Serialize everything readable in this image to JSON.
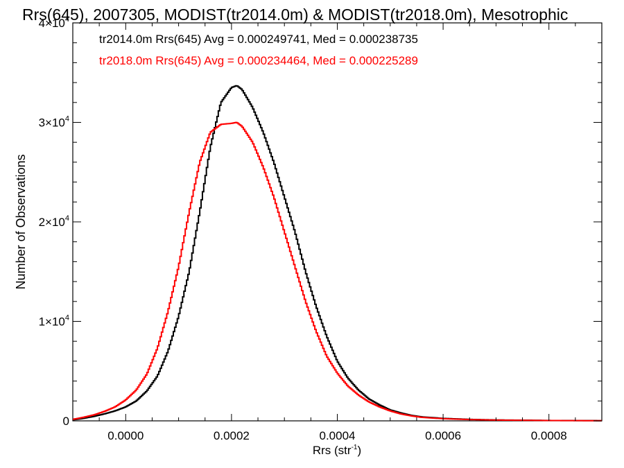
{
  "chart_data": {
    "type": "line",
    "title": "Rrs(645), 2007305, MODIST(tr2014.0m) & MODIST(tr2018.0m), Mesotrophic",
    "xlabel": "Rrs (str",
    "xlabel_sup": "-1",
    "xlabel_close": ")",
    "ylabel": "Number of Observations",
    "xlim": [
      -0.0001,
      0.0009
    ],
    "ylim": [
      0,
      40000
    ],
    "x_ticks": [
      {
        "value": 0.0,
        "label": "0.0000"
      },
      {
        "value": 0.0002,
        "label": "0.0002"
      },
      {
        "value": 0.0004,
        "label": "0.0004"
      },
      {
        "value": 0.0006,
        "label": "0.0006"
      },
      {
        "value": 0.0008,
        "label": "0.0008"
      }
    ],
    "y_ticks": [
      {
        "value": 0,
        "label": "0",
        "sup": ""
      },
      {
        "value": 10000,
        "label": "1×10",
        "sup": "4"
      },
      {
        "value": 20000,
        "label": "2×10",
        "sup": "4"
      },
      {
        "value": 30000,
        "label": "3×10",
        "sup": "4"
      },
      {
        "value": 40000,
        "label": "4×10",
        "sup": "4"
      }
    ],
    "annotations": [
      {
        "text": "tr2014.0m Rrs(645) Avg = 0.000249741, Med = 0.000238735",
        "color": "#000000"
      },
      {
        "text": "tr2018.0m Rrs(645) Avg = 0.000234464, Med = 0.000225289",
        "color": "#ff0000"
      }
    ],
    "series": [
      {
        "color": "#000000",
        "x": [
          -0.0001,
          -8e-05,
          -6e-05,
          -4e-05,
          -2e-05,
          0.0,
          2e-05,
          4e-05,
          6e-05,
          8e-05,
          0.0001,
          0.00012,
          0.00014,
          0.00016,
          0.00018,
          0.0002,
          0.00021,
          0.00022,
          0.00024,
          0.00026,
          0.00028,
          0.0003,
          0.00032,
          0.00034,
          0.00036,
          0.00038,
          0.0004,
          0.00042,
          0.00044,
          0.00046,
          0.00048,
          0.0005,
          0.00052,
          0.00054,
          0.00056,
          0.0006,
          0.00065,
          0.0007,
          0.0008,
          0.0009
        ],
        "y": [
          100,
          250,
          450,
          700,
          1000,
          1400,
          2000,
          3000,
          4500,
          7000,
          10500,
          15000,
          21000,
          27500,
          32000,
          33500,
          33700,
          33300,
          31500,
          29000,
          26000,
          22500,
          19000,
          15000,
          11500,
          8500,
          6000,
          4300,
          3100,
          2200,
          1600,
          1100,
          800,
          550,
          400,
          250,
          150,
          90,
          40,
          20
        ]
      },
      {
        "color": "#ff0000",
        "x": [
          -0.0001,
          -8e-05,
          -6e-05,
          -4e-05,
          -2e-05,
          0.0,
          2e-05,
          4e-05,
          6e-05,
          8e-05,
          0.0001,
          0.00012,
          0.00014,
          0.00016,
          0.00018,
          0.0002,
          0.00021,
          0.00022,
          0.00024,
          0.00026,
          0.00028,
          0.0003,
          0.00032,
          0.00034,
          0.00036,
          0.00038,
          0.0004,
          0.00042,
          0.00044,
          0.00046,
          0.00048,
          0.0005,
          0.00052,
          0.00054,
          0.00056,
          0.0006,
          0.00065,
          0.0007,
          0.0008,
          0.0009
        ],
        "y": [
          150,
          350,
          600,
          950,
          1400,
          2100,
          3100,
          4700,
          7300,
          11000,
          15500,
          21000,
          26000,
          29000,
          29800,
          29900,
          30000,
          29600,
          28000,
          25500,
          22500,
          19000,
          15500,
          12000,
          9000,
          6500,
          4800,
          3500,
          2600,
          1900,
          1400,
          1000,
          700,
          500,
          350,
          220,
          130,
          80,
          35,
          15
        ]
      }
    ]
  }
}
